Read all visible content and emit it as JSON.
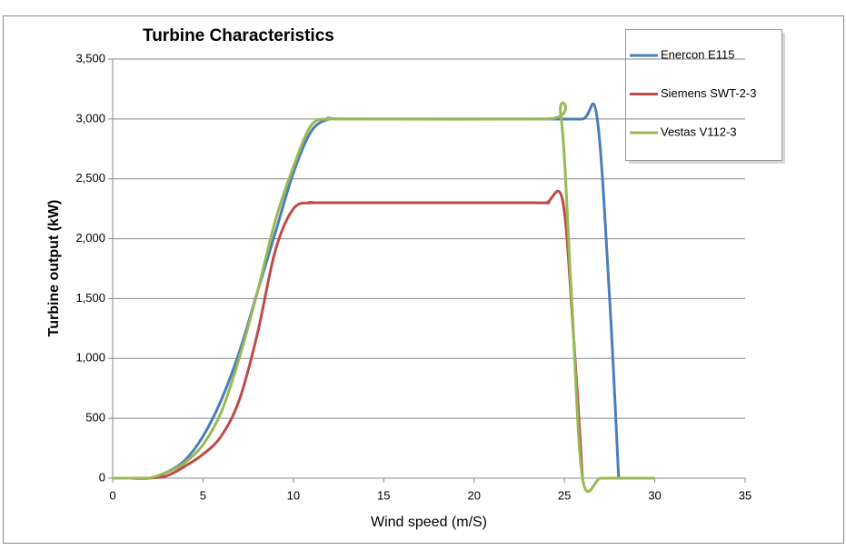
{
  "chart_data": {
    "type": "line",
    "title": "Turbine Characteristics",
    "xlabel": "Wind speed (m/S)",
    "ylabel": "Turbine output (kW)",
    "xlim": [
      0,
      35
    ],
    "xticks": [
      0,
      5,
      10,
      15,
      20,
      25,
      30,
      35
    ],
    "ylim": [
      0,
      3500
    ],
    "yticks": [
      0,
      500,
      {
        "value": 1000,
        "label": "1,000"
      },
      {
        "value": 1500,
        "label": "1,500"
      },
      {
        "value": 2000,
        "label": "2,000"
      },
      {
        "value": 2500,
        "label": "2,500"
      },
      {
        "value": 3000,
        "label": "3,000"
      },
      {
        "value": 3500,
        "label": "3,500"
      }
    ],
    "grid": true,
    "legend": "upper right",
    "series": [
      {
        "name": "Enercon E115",
        "color": "#4a7ebb",
        "x": [
          0,
          1,
          2,
          3,
          4,
          5,
          6,
          7,
          8,
          9,
          10,
          11,
          12,
          13,
          24,
          26,
          26.8,
          27.5,
          28
        ],
        "values": [
          0,
          0,
          0,
          50,
          150,
          350,
          650,
          1050,
          1550,
          2050,
          2550,
          2900,
          3000,
          3000,
          3000,
          3000,
          3020,
          1500,
          0
        ]
      },
      {
        "name": "Siemens SWT-2-3",
        "color": "#be4b48",
        "x": [
          0,
          1,
          2,
          3,
          4,
          5,
          6,
          7,
          8,
          9,
          10,
          11,
          12,
          23,
          24,
          24.9,
          25.5,
          26
        ],
        "values": [
          0,
          0,
          0,
          20,
          100,
          200,
          350,
          650,
          1200,
          1900,
          2250,
          2300,
          2300,
          2300,
          2300,
          2320,
          1200,
          0
        ]
      },
      {
        "name": "Vestas V112-3",
        "color": "#98b954",
        "x": [
          0,
          1,
          2,
          3,
          4,
          5,
          6,
          7,
          8,
          9,
          10,
          11,
          12,
          13,
          24,
          24.8,
          25.4,
          26,
          27,
          28,
          29,
          30
        ],
        "values": [
          0,
          0,
          0,
          50,
          130,
          280,
          550,
          1000,
          1550,
          2150,
          2600,
          2950,
          3000,
          3000,
          3000,
          3030,
          1500,
          0,
          0,
          0,
          0,
          0
        ]
      }
    ]
  }
}
